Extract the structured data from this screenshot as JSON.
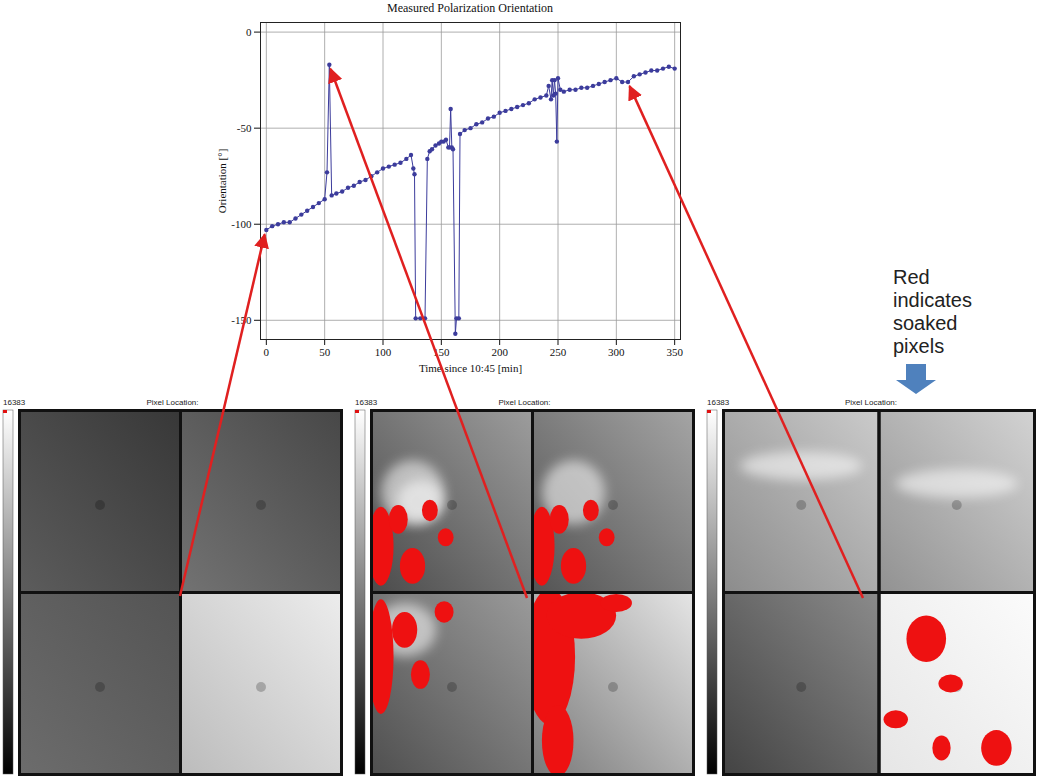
{
  "chart_data": {
    "type": "line",
    "title": "Measured Polarization Orientation",
    "x_label": "Time since 10:45 [min]",
    "y_label": "Orientation [°]",
    "x": [
      0,
      5,
      10,
      15,
      20,
      25,
      30,
      35,
      40,
      45,
      50,
      52,
      54,
      56,
      60,
      65,
      70,
      75,
      80,
      85,
      90,
      95,
      100,
      105,
      110,
      115,
      120,
      124,
      126,
      127,
      128,
      132,
      136,
      138,
      140,
      142,
      145,
      148,
      150,
      152,
      154,
      156,
      157,
      158,
      159,
      160,
      162,
      163,
      165,
      166,
      170,
      175,
      180,
      185,
      190,
      195,
      200,
      205,
      210,
      215,
      220,
      225,
      230,
      235,
      240,
      242,
      244,
      245,
      246,
      247,
      248,
      249,
      250,
      252,
      255,
      260,
      265,
      270,
      275,
      280,
      285,
      290,
      295,
      300,
      305,
      310,
      315,
      320,
      325,
      330,
      335,
      340,
      345,
      350
    ],
    "series": [
      {
        "color": "#3c3c9c",
        "marker": "circle",
        "values": [
          -103,
          -101,
          -100,
          -99,
          -99,
          -97,
          -95,
          -93,
          -91,
          -89,
          -87,
          -73,
          -17,
          -85,
          -84,
          -83,
          -81,
          -80,
          -78,
          -77,
          -75,
          -73,
          -71,
          -70,
          -69,
          -68,
          -66,
          -64,
          -71,
          -74,
          -149,
          -149,
          -149,
          -66,
          -62,
          -61,
          -59,
          -58,
          -57,
          -57,
          -56,
          -60,
          -60,
          -40,
          -60,
          -61,
          -157,
          -149,
          -149,
          -53,
          -51,
          -50,
          -48,
          -47,
          -45,
          -44,
          -42,
          -41,
          -40,
          -39,
          -38,
          -37,
          -35,
          -34,
          -33,
          -28,
          -35,
          -25,
          -33,
          -25,
          -32,
          -57,
          -24,
          -30,
          -31,
          -30,
          -30,
          -29,
          -29,
          -28,
          -27,
          -26,
          -25,
          -24,
          -26,
          -26,
          -23,
          -22,
          -21,
          -20,
          -20,
          -19,
          -18,
          -19
        ]
      }
    ],
    "xlim": [
      -5,
      355
    ],
    "xticks": [
      0,
      50,
      100,
      150,
      200,
      250,
      300,
      350
    ],
    "ylim": [
      -160,
      5
    ],
    "yticks": [
      -150,
      -100,
      -50,
      0
    ],
    "grid": true
  },
  "panels": [
    {
      "x": 0,
      "colorbar_max": 16383,
      "header": "Pixel Location:"
    },
    {
      "x": 54,
      "colorbar_max": 16383,
      "header": "Pixel Location:"
    },
    {
      "x": 310,
      "colorbar_max": 16383,
      "header": "Pixel Location:"
    }
  ],
  "annotation": {
    "text": "Red indicates soaked pixels"
  }
}
